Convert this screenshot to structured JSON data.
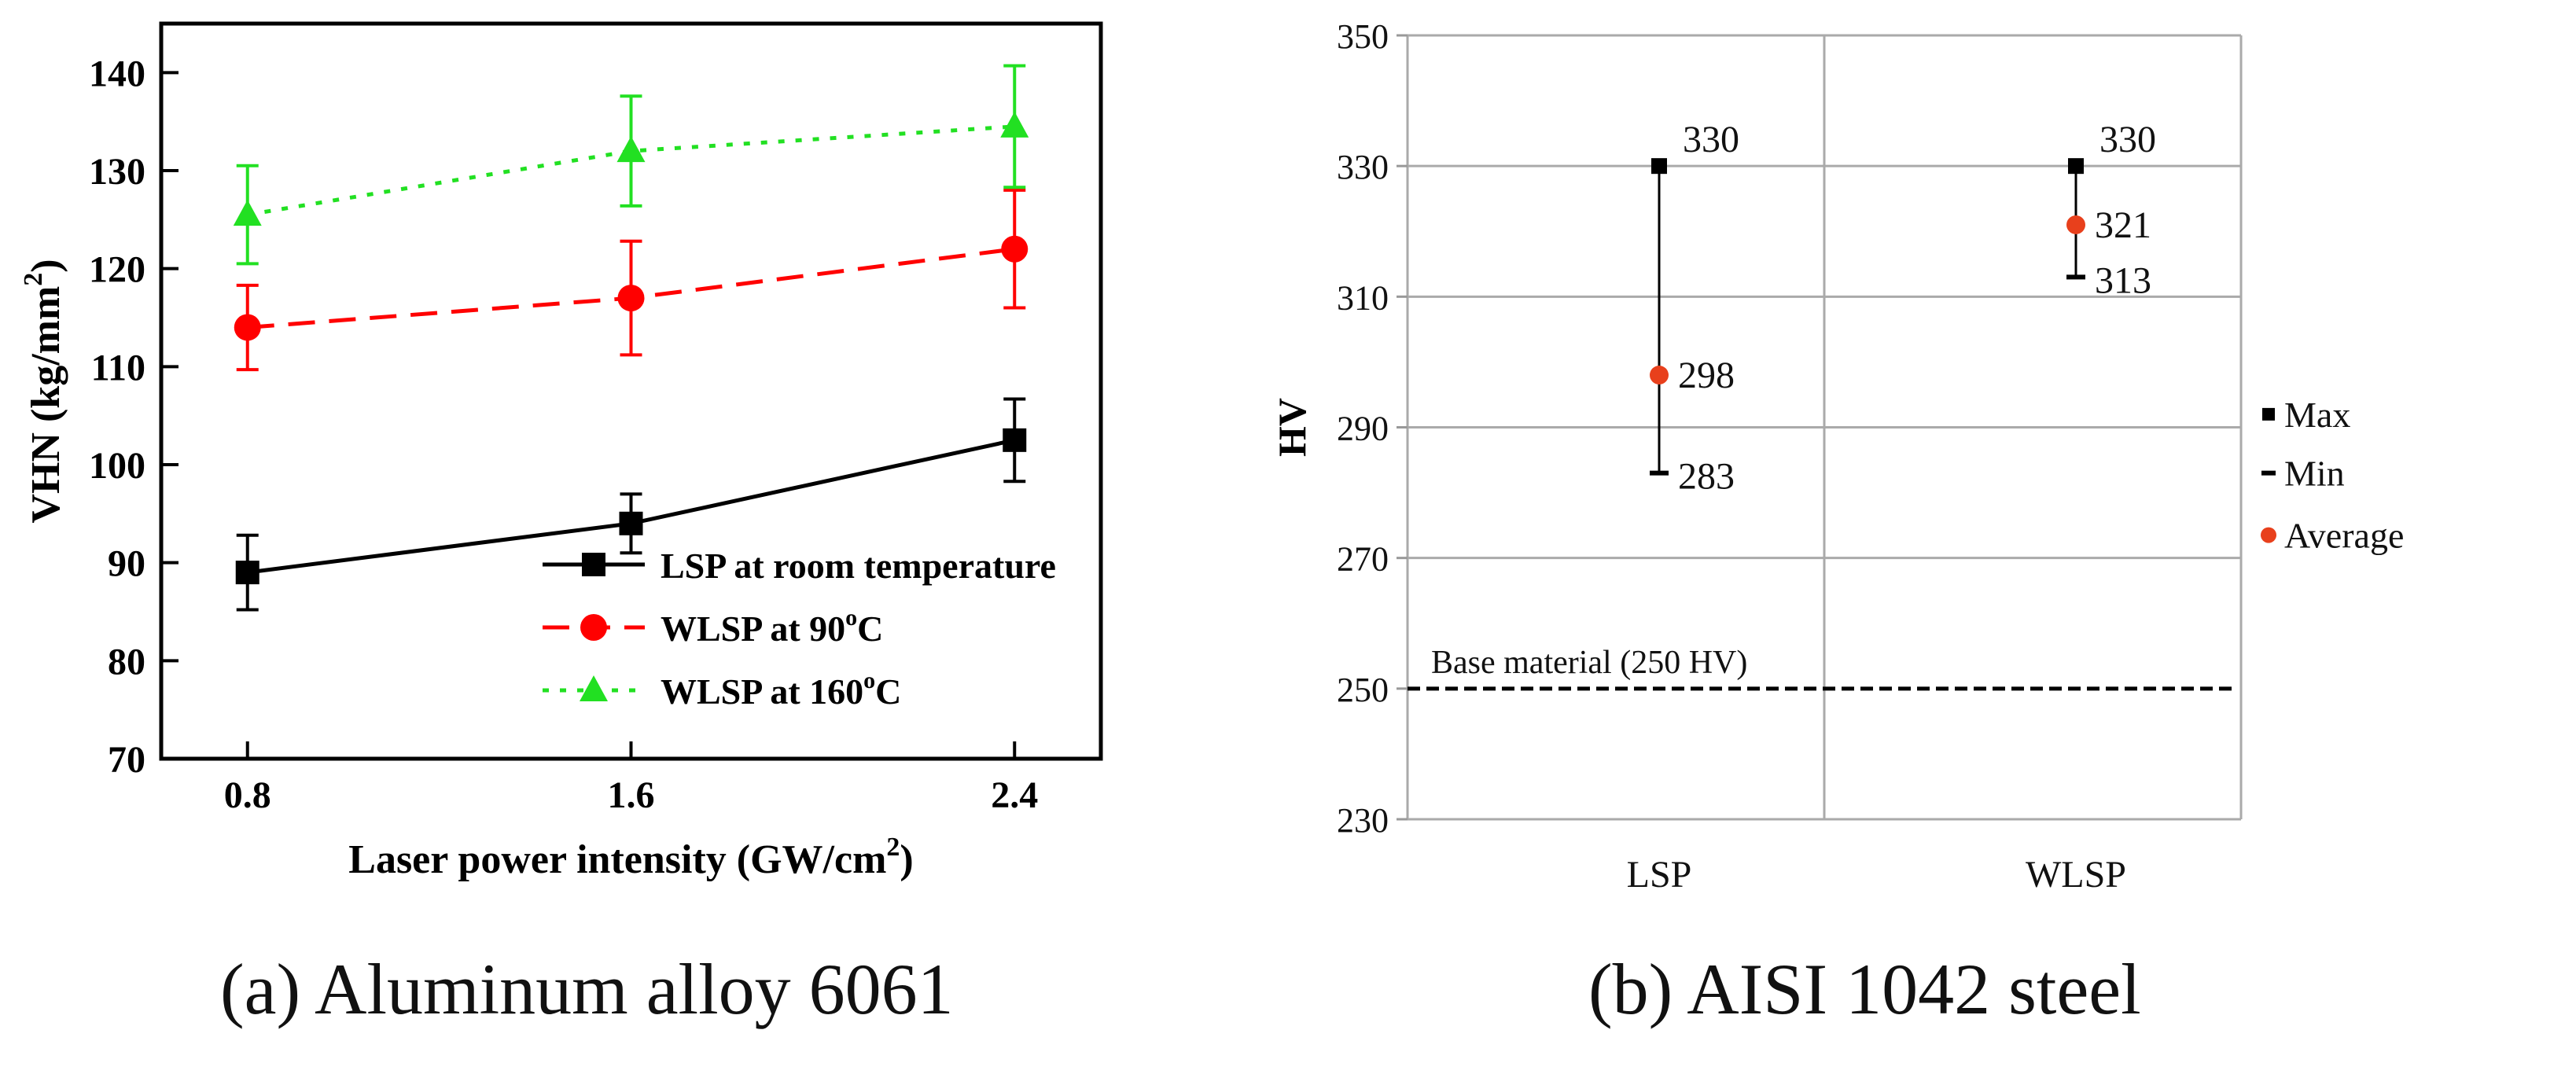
{
  "captions": {
    "a": "(a)  Aluminum alloy 6061",
    "b": "(b) AISI 1042 steel"
  },
  "chart_data": [
    {
      "type": "line",
      "title": "",
      "xlabel": "Laser power intensity (GW/cm",
      "xlabel_sup": "2",
      "xlabel_tail": ")",
      "ylabel": "VHN (kg/mm",
      "ylabel_sup": "2",
      "ylabel_tail": ")",
      "x": [
        0.8,
        1.6,
        2.4
      ],
      "x_tick_labels": [
        "0.8",
        "1.6",
        "2.4"
      ],
      "xlim": [
        0.62,
        2.58
      ],
      "ylim": [
        70,
        145
      ],
      "y_ticks": [
        70,
        80,
        90,
        100,
        110,
        120,
        130,
        140
      ],
      "grid": false,
      "legend_position": "bottom-right",
      "series": [
        {
          "name": "LSP at room temperature",
          "legend_label": "LSP at room temperature",
          "legend_sup": "",
          "legend_tail": "",
          "values": [
            89,
            94,
            102.5
          ],
          "errors": [
            3.8,
            3.0,
            4.2
          ],
          "color": "#000000",
          "marker": "square",
          "dash": "solid"
        },
        {
          "name": "WLSP at 90°C",
          "legend_label": "WLSP at 90",
          "legend_sup": "o",
          "legend_tail": "C",
          "values": [
            114,
            117,
            122
          ],
          "errors": [
            4.3,
            5.8,
            6.0
          ],
          "color": "#ff0000",
          "marker": "circle",
          "dash": "dashed"
        },
        {
          "name": "WLSP at 160°C",
          "legend_label": "WLSP at 160",
          "legend_sup": "o",
          "legend_tail": "C",
          "values": [
            125.5,
            132,
            134.5
          ],
          "errors": [
            5.0,
            5.6,
            6.2
          ],
          "color": "#22e022",
          "marker": "triangle",
          "dash": "dotted"
        }
      ]
    },
    {
      "type": "scatter",
      "title": "",
      "xlabel": "",
      "ylabel": "HV",
      "categories": [
        "LSP",
        "WLSP"
      ],
      "ylim": [
        230,
        350
      ],
      "y_ticks": [
        230,
        250,
        270,
        290,
        310,
        330,
        350
      ],
      "y_gridlines": [
        270,
        290,
        310,
        330,
        350
      ],
      "grid": true,
      "legend_position": "right",
      "series": [
        {
          "name": "Max",
          "values": [
            330,
            330
          ],
          "color": "#000000",
          "marker": "square"
        },
        {
          "name": "Min",
          "values": [
            283,
            313
          ],
          "color": "#000000",
          "marker": "dash"
        },
        {
          "name": "Average",
          "values": [
            298,
            321
          ],
          "color": "#e8401c",
          "marker": "circle"
        }
      ],
      "point_labels": {
        "max": [
          "330",
          "330"
        ],
        "min": [
          "283",
          "313"
        ],
        "avg": [
          "298",
          "321"
        ]
      },
      "reference_line": {
        "value": 250,
        "label": "Base material (250 HV)"
      }
    }
  ]
}
